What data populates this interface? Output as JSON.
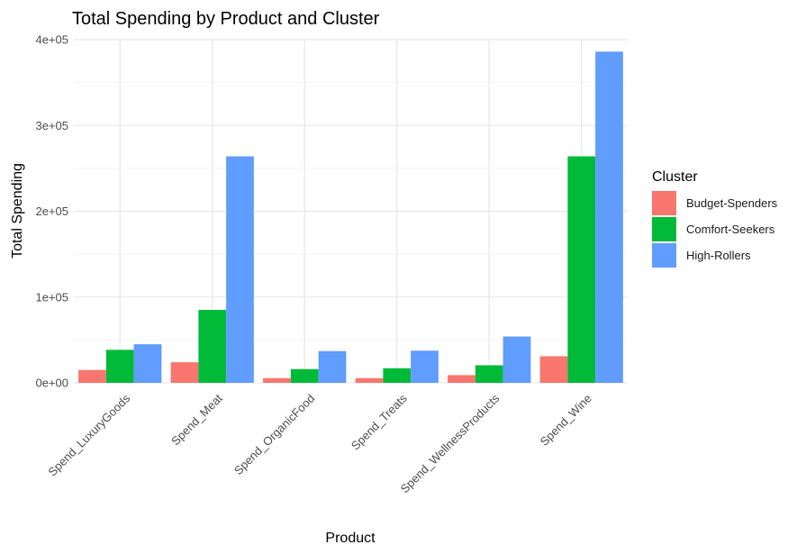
{
  "chart_data": {
    "type": "bar",
    "title": "Total Spending by Product and Cluster",
    "xlabel": "Product",
    "ylabel": "Total Spending",
    "categories": [
      "Spend_LuxuryGoods",
      "Spend_Meat",
      "Spend_OrganicFood",
      "Spend_Treats",
      "Spend_WellnessProducts",
      "Spend_Wine"
    ],
    "ylim": [
      0,
      400000
    ],
    "yticks": [
      0,
      100000,
      200000,
      300000,
      400000
    ],
    "ytick_labels": [
      "0e+00",
      "1e+05",
      "2e+05",
      "3e+05",
      "4e+05"
    ],
    "grid": true,
    "legend": {
      "title": "Cluster",
      "position": "right"
    },
    "series": [
      {
        "name": "Budget-Spenders",
        "color": "#F8766D",
        "values": [
          15000,
          24000,
          5500,
          5500,
          9000,
          31000
        ]
      },
      {
        "name": "Comfort-Seekers",
        "color": "#00BA38",
        "values": [
          38500,
          85000,
          16000,
          17000,
          20500,
          264000
        ]
      },
      {
        "name": "High-Rollers",
        "color": "#619CFF",
        "values": [
          45000,
          264000,
          37000,
          37500,
          54000,
          386000
        ]
      }
    ]
  }
}
